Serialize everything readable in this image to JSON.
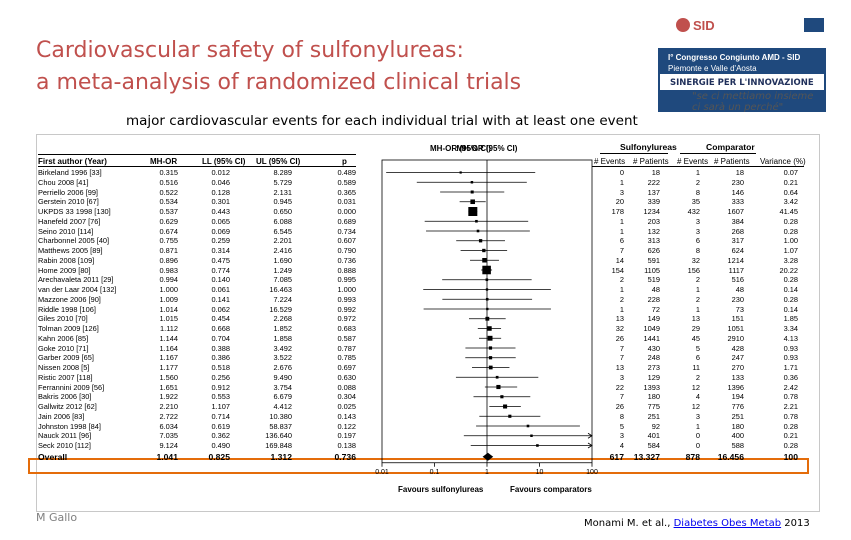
{
  "title": {
    "line1": "Cardiovascular safety of sulfonylureas:",
    "line2": "a meta-analysis of randomized clinical trials"
  },
  "logo": {
    "sid": "SID",
    "line1": "I° Congresso Congiunto AMD - SID",
    "line2": "Piemonte e Valle d'Aosta",
    "tagline": "SINERGIE PER L'INNOVAZIONE",
    "slogan1": "\"se ci mettiamo insieme",
    "slogan2": "ci sarà un perché\""
  },
  "subtitle": "major cardiovascular events for each individual trial with at least one event",
  "table": {
    "headers": {
      "author": "First author (Year)",
      "mh_or": "MH-OR",
      "ll": "LL (95% CI)",
      "ul": "UL (95% CI)",
      "p": "p",
      "plot": "MH-OR (95% CI)",
      "sulfonylureas": "Sulfonylureas",
      "comparator": "Comparator",
      "events1": "# Events",
      "patients1": "# Patients",
      "events2": "# Events",
      "patients2": "# Patients",
      "variance": "Variance (%)"
    },
    "rows": [
      {
        "author": "Birkeland 1996 [33]",
        "or": "0.315",
        "ll": "0.012",
        "ul": "8.289",
        "p": "0.489",
        "ev1": "0",
        "pt1": "18",
        "ev2": "1",
        "pt2": "18",
        "var": "0.07"
      },
      {
        "author": "Chou 2008 [41]",
        "or": "0.516",
        "ll": "0.046",
        "ul": "5.729",
        "p": "0.589",
        "ev1": "1",
        "pt1": "222",
        "ev2": "2",
        "pt2": "230",
        "var": "0.21"
      },
      {
        "author": "Perriello 2006 [99]",
        "or": "0.522",
        "ll": "0.128",
        "ul": "2.131",
        "p": "0.365",
        "ev1": "3",
        "pt1": "137",
        "ev2": "8",
        "pt2": "146",
        "var": "0.64"
      },
      {
        "author": "Gerstein 2010 [67]",
        "or": "0.534",
        "ll": "0.301",
        "ul": "0.945",
        "p": "0.031",
        "ev1": "20",
        "pt1": "339",
        "ev2": "35",
        "pt2": "333",
        "var": "3.42"
      },
      {
        "author": "UKPDS 33 1998 [130]",
        "or": "0.537",
        "ll": "0.443",
        "ul": "0.650",
        "p": "0.000",
        "ev1": "178",
        "pt1": "1234",
        "ev2": "432",
        "pt2": "1607",
        "var": "41.45"
      },
      {
        "author": "Hanefeld 2007 [76]",
        "or": "0.629",
        "ll": "0.065",
        "ul": "6.088",
        "p": "0.689",
        "ev1": "1",
        "pt1": "203",
        "ev2": "3",
        "pt2": "384",
        "var": "0.28"
      },
      {
        "author": "Seino 2010 [114]",
        "or": "0.674",
        "ll": "0.069",
        "ul": "6.545",
        "p": "0.734",
        "ev1": "1",
        "pt1": "132",
        "ev2": "3",
        "pt2": "268",
        "var": "0.28"
      },
      {
        "author": "Charbonnel 2005 [40]",
        "or": "0.755",
        "ll": "0.259",
        "ul": "2.201",
        "p": "0.607",
        "ev1": "6",
        "pt1": "313",
        "ev2": "6",
        "pt2": "317",
        "var": "1.00"
      },
      {
        "author": "Matthews 2005 [89]",
        "or": "0.871",
        "ll": "0.314",
        "ul": "2.416",
        "p": "0.790",
        "ev1": "7",
        "pt1": "626",
        "ev2": "8",
        "pt2": "624",
        "var": "1.07"
      },
      {
        "author": "Rabin 2008 [109]",
        "or": "0.896",
        "ll": "0.475",
        "ul": "1.690",
        "p": "0.736",
        "ev1": "14",
        "pt1": "591",
        "ev2": "32",
        "pt2": "1214",
        "var": "3.28"
      },
      {
        "author": "Home 2009 [80]",
        "or": "0.983",
        "ll": "0.774",
        "ul": "1.249",
        "p": "0.888",
        "ev1": "154",
        "pt1": "1105",
        "ev2": "156",
        "pt2": "1117",
        "var": "20.22"
      },
      {
        "author": "Arechavaleta 2011 [29]",
        "or": "0.994",
        "ll": "0.140",
        "ul": "7.085",
        "p": "0.995",
        "ev1": "2",
        "pt1": "519",
        "ev2": "2",
        "pt2": "516",
        "var": "0.28"
      },
      {
        "author": "van der Laar 2004 [132]",
        "or": "1.000",
        "ll": "0.061",
        "ul": "16.463",
        "p": "1.000",
        "ev1": "1",
        "pt1": "48",
        "ev2": "1",
        "pt2": "48",
        "var": "0.14"
      },
      {
        "author": "Mazzone 2006 [90]",
        "or": "1.009",
        "ll": "0.141",
        "ul": "7.224",
        "p": "0.993",
        "ev1": "2",
        "pt1": "228",
        "ev2": "2",
        "pt2": "230",
        "var": "0.28"
      },
      {
        "author": "Riddle 1998 [106]",
        "or": "1.014",
        "ll": "0.062",
        "ul": "16.529",
        "p": "0.992",
        "ev1": "1",
        "pt1": "72",
        "ev2": "1",
        "pt2": "73",
        "var": "0.14"
      },
      {
        "author": "Giles 2010 [70]",
        "or": "1.015",
        "ll": "0.454",
        "ul": "2.268",
        "p": "0.972",
        "ev1": "13",
        "pt1": "149",
        "ev2": "13",
        "pt2": "151",
        "var": "1.85"
      },
      {
        "author": "Tolman 2009 [126]",
        "or": "1.112",
        "ll": "0.668",
        "ul": "1.852",
        "p": "0.683",
        "ev1": "32",
        "pt1": "1049",
        "ev2": "29",
        "pt2": "1051",
        "var": "3.34"
      },
      {
        "author": "Kahn 2006 [85]",
        "or": "1.144",
        "ll": "0.704",
        "ul": "1.858",
        "p": "0.587",
        "ev1": "26",
        "pt1": "1441",
        "ev2": "45",
        "pt2": "2910",
        "var": "4.13"
      },
      {
        "author": "Goke 2010 [71]",
        "or": "1.164",
        "ll": "0.388",
        "ul": "3.492",
        "p": "0.787",
        "ev1": "7",
        "pt1": "430",
        "ev2": "5",
        "pt2": "428",
        "var": "0.93"
      },
      {
        "author": "Garber 2009 [65]",
        "or": "1.167",
        "ll": "0.386",
        "ul": "3.522",
        "p": "0.785",
        "ev1": "7",
        "pt1": "248",
        "ev2": "6",
        "pt2": "247",
        "var": "0.93"
      },
      {
        "author": "Nissen 2008 [5]",
        "or": "1.177",
        "ll": "0.518",
        "ul": "2.676",
        "p": "0.697",
        "ev1": "13",
        "pt1": "273",
        "ev2": "11",
        "pt2": "270",
        "var": "1.71"
      },
      {
        "author": "Ristic 2007 [118]",
        "or": "1.560",
        "ll": "0.256",
        "ul": "9.490",
        "p": "0.630",
        "ev1": "3",
        "pt1": "129",
        "ev2": "2",
        "pt2": "133",
        "var": "0.36"
      },
      {
        "author": "Ferrannini 2009 [56]",
        "or": "1.651",
        "ll": "0.912",
        "ul": "3.754",
        "p": "0.088",
        "ev1": "22",
        "pt1": "1393",
        "ev2": "12",
        "pt2": "1396",
        "var": "2.42"
      },
      {
        "author": "Bakris 2006 [30]",
        "or": "1.922",
        "ll": "0.553",
        "ul": "6.679",
        "p": "0.304",
        "ev1": "7",
        "pt1": "180",
        "ev2": "4",
        "pt2": "194",
        "var": "0.78"
      },
      {
        "author": "Gallwitz 2012 [62]",
        "or": "2.210",
        "ll": "1.107",
        "ul": "4.412",
        "p": "0.025",
        "ev1": "26",
        "pt1": "775",
        "ev2": "12",
        "pt2": "776",
        "var": "2.21"
      },
      {
        "author": "Jain 2006 [83]",
        "or": "2.722",
        "ll": "0.714",
        "ul": "10.380",
        "p": "0.143",
        "ev1": "8",
        "pt1": "251",
        "ev2": "3",
        "pt2": "251",
        "var": "0.78"
      },
      {
        "author": "Johnston 1998 [84]",
        "or": "6.034",
        "ll": "0.619",
        "ul": "58.837",
        "p": "0.122",
        "ev1": "5",
        "pt1": "92",
        "ev2": "1",
        "pt2": "180",
        "var": "0.28"
      },
      {
        "author": "Nauck 2011 [96]",
        "or": "7.035",
        "ll": "0.362",
        "ul": "136.640",
        "p": "0.197",
        "ev1": "3",
        "pt1": "401",
        "ev2": "0",
        "pt2": "400",
        "var": "0.21"
      },
      {
        "author": "Seck 2010 [112]",
        "or": "9.124",
        "ll": "0.490",
        "ul": "169.848",
        "p": "0.138",
        "ev1": "4",
        "pt1": "584",
        "ev2": "0",
        "pt2": "588",
        "var": "0.28"
      }
    ],
    "overall": {
      "author": "Overall",
      "or": "1.041",
      "ll": "0.825",
      "ul": "1.312",
      "p": "0.736",
      "ev1": "617",
      "pt1": "13.327",
      "ev2": "878",
      "pt2": "16.456",
      "var": "100"
    }
  },
  "chart_data": {
    "type": "scatter",
    "title": "MH-OR (95% CI)",
    "x_scale": "log",
    "xlim": [
      0.01,
      100
    ],
    "x_ticks": [
      "0.01",
      "0.1",
      "1",
      "10",
      "100"
    ],
    "reference_line": 1,
    "left_label": "Favours sulfonylureas",
    "right_label": "Favours comparators",
    "points": [
      {
        "or": 0.315,
        "ll": 0.012,
        "ul": 8.289,
        "w": 0.07
      },
      {
        "or": 0.516,
        "ll": 0.046,
        "ul": 5.729,
        "w": 0.21
      },
      {
        "or": 0.522,
        "ll": 0.128,
        "ul": 2.131,
        "w": 0.64
      },
      {
        "or": 0.534,
        "ll": 0.301,
        "ul": 0.945,
        "w": 3.42
      },
      {
        "or": 0.537,
        "ll": 0.443,
        "ul": 0.65,
        "w": 41.45
      },
      {
        "or": 0.629,
        "ll": 0.065,
        "ul": 6.088,
        "w": 0.28
      },
      {
        "or": 0.674,
        "ll": 0.069,
        "ul": 6.545,
        "w": 0.28
      },
      {
        "or": 0.755,
        "ll": 0.259,
        "ul": 2.201,
        "w": 1.0
      },
      {
        "or": 0.871,
        "ll": 0.314,
        "ul": 2.416,
        "w": 1.07
      },
      {
        "or": 0.896,
        "ll": 0.475,
        "ul": 1.69,
        "w": 3.28
      },
      {
        "or": 0.983,
        "ll": 0.774,
        "ul": 1.249,
        "w": 20.22
      },
      {
        "or": 0.994,
        "ll": 0.14,
        "ul": 7.085,
        "w": 0.28
      },
      {
        "or": 1.0,
        "ll": 0.061,
        "ul": 16.463,
        "w": 0.14
      },
      {
        "or": 1.009,
        "ll": 0.141,
        "ul": 7.224,
        "w": 0.28
      },
      {
        "or": 1.014,
        "ll": 0.062,
        "ul": 16.529,
        "w": 0.14
      },
      {
        "or": 1.015,
        "ll": 0.454,
        "ul": 2.268,
        "w": 1.85
      },
      {
        "or": 1.112,
        "ll": 0.668,
        "ul": 1.852,
        "w": 3.34
      },
      {
        "or": 1.144,
        "ll": 0.704,
        "ul": 1.858,
        "w": 4.13
      },
      {
        "or": 1.164,
        "ll": 0.388,
        "ul": 3.492,
        "w": 0.93
      },
      {
        "or": 1.167,
        "ll": 0.386,
        "ul": 3.522,
        "w": 0.93
      },
      {
        "or": 1.177,
        "ll": 0.518,
        "ul": 2.676,
        "w": 1.71
      },
      {
        "or": 1.56,
        "ll": 0.256,
        "ul": 9.49,
        "w": 0.36
      },
      {
        "or": 1.651,
        "ll": 0.912,
        "ul": 3.754,
        "w": 2.42
      },
      {
        "or": 1.922,
        "ll": 0.553,
        "ul": 6.679,
        "w": 0.78
      },
      {
        "or": 2.21,
        "ll": 1.107,
        "ul": 4.412,
        "w": 2.21
      },
      {
        "or": 2.722,
        "ll": 0.714,
        "ul": 10.38,
        "w": 0.78
      },
      {
        "or": 6.034,
        "ll": 0.619,
        "ul": 58.837,
        "w": 0.28
      },
      {
        "or": 7.035,
        "ll": 0.362,
        "ul": 136.64,
        "w": 0.21
      },
      {
        "or": 9.124,
        "ll": 0.49,
        "ul": 169.848,
        "w": 0.28
      }
    ],
    "overall": {
      "or": 1.041,
      "ll": 0.825,
      "ul": 1.312
    }
  },
  "footer": {
    "author": "M Gallo",
    "citation_pre": "Monami M. et al., ",
    "citation_link": "Diabetes Obes Metab",
    "citation_post": " 2013"
  },
  "colors": {
    "title": "#c0504d",
    "highlight": "#e46c0a",
    "logo_bg": "#1f497d"
  }
}
